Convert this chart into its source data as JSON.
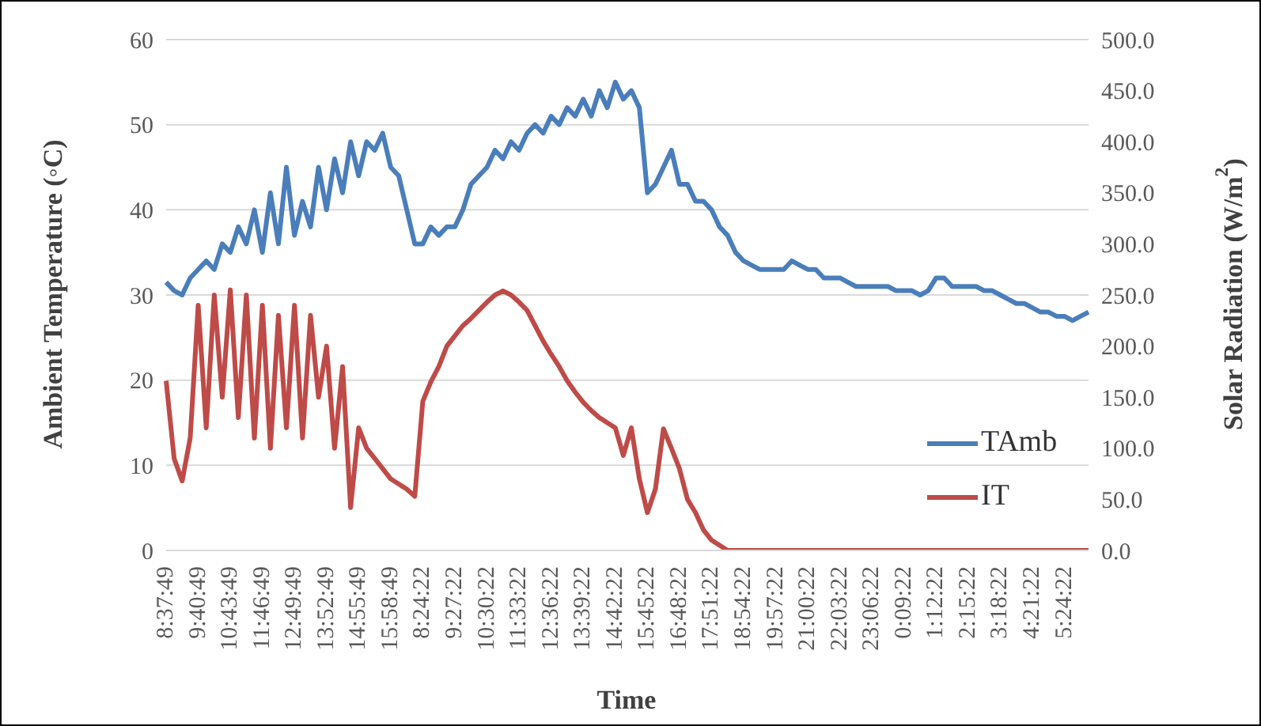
{
  "chart_data": {
    "type": "line",
    "xlabel": "Time",
    "ylabel": "Ambient Temperature (◦C)",
    "y2label": "Solar Radiation (W/m$^{2}$)",
    "categories": [
      "8:37:49",
      null,
      null,
      null,
      "9:40:49",
      null,
      null,
      null,
      "10:43:49",
      null,
      null,
      null,
      "11:46:49",
      null,
      null,
      null,
      "12:49:49",
      null,
      null,
      null,
      "13:52:49",
      null,
      null,
      null,
      "14:55:49",
      null,
      null,
      null,
      "15:58:49",
      null,
      null,
      null,
      "8:24:22",
      null,
      null,
      null,
      "9:27:22",
      null,
      null,
      null,
      "10:30:22",
      null,
      null,
      null,
      "11:33:22",
      null,
      null,
      null,
      "12:36:22",
      null,
      null,
      null,
      "13:39:22",
      null,
      null,
      null,
      "14:42:22",
      null,
      null,
      null,
      "15:45:22",
      null,
      null,
      null,
      "16:48:22",
      null,
      null,
      null,
      "17:51:22",
      null,
      null,
      null,
      "18:54:22",
      null,
      null,
      null,
      "19:57:22",
      null,
      null,
      null,
      "21:00:22",
      null,
      null,
      null,
      "22:03:22",
      null,
      null,
      null,
      "23:06:22",
      null,
      null,
      null,
      "0:09:22",
      null,
      null,
      null,
      "1:12:22",
      null,
      null,
      null,
      "2:15:22",
      null,
      null,
      null,
      "3:18:22",
      null,
      null,
      null,
      "4:21:22",
      null,
      null,
      null,
      "5:24:22",
      null,
      null,
      null
    ],
    "series": [
      {
        "name": "TAmb",
        "color": "#4a7ebb",
        "values": [
          31.5,
          30.5,
          30,
          32,
          33,
          34,
          33,
          36,
          35,
          38,
          36,
          40,
          35,
          42,
          36,
          45,
          37,
          41,
          38,
          45,
          40,
          46,
          42,
          48,
          44,
          48,
          47,
          49,
          45,
          44,
          40,
          36,
          36,
          38,
          37,
          38,
          38,
          40,
          43,
          44,
          45,
          47,
          46,
          48,
          47,
          49,
          50,
          49,
          51,
          50,
          52,
          51,
          53,
          51,
          54,
          52,
          55,
          53,
          54,
          52,
          42,
          43,
          45,
          47,
          43,
          43,
          41,
          41,
          40,
          38,
          37,
          35,
          34,
          33.5,
          33,
          33,
          33,
          33,
          34,
          33.5,
          33,
          33,
          32,
          32,
          32,
          31.5,
          31,
          31,
          31,
          31,
          31,
          30.5,
          30.5,
          30.5,
          30,
          30.5,
          32,
          32,
          31,
          31,
          31,
          31,
          30.5,
          30.5,
          30,
          29.5,
          29,
          29,
          28.5,
          28,
          28,
          27.5,
          27.5,
          27,
          27.5,
          28
        ]
      },
      {
        "name": "IT",
        "color": "#be4b48",
        "axis": "y2",
        "values": [
          166,
          90,
          68,
          110,
          240,
          120,
          250,
          150,
          255,
          130,
          250,
          110,
          240,
          100,
          230,
          120,
          240,
          110,
          230,
          150,
          200,
          100,
          180,
          42,
          120,
          100,
          90,
          80,
          70,
          65,
          60,
          53,
          146,
          165,
          180,
          200,
          210,
          220,
          227,
          235,
          243,
          250,
          254,
          250,
          243,
          235,
          220,
          205,
          192,
          180,
          166,
          155,
          145,
          137,
          130,
          125,
          120,
          93,
          120,
          70,
          37,
          60,
          119,
          100,
          80,
          50,
          37,
          20,
          10,
          5,
          0,
          0,
          0,
          0,
          0,
          0,
          0,
          0,
          0,
          0,
          0,
          0,
          0,
          0,
          0,
          0,
          0,
          0,
          0,
          0,
          0,
          0,
          0,
          0,
          0,
          0,
          0,
          0,
          0,
          0,
          0,
          0,
          0,
          0,
          0,
          0,
          0,
          0,
          0,
          0,
          0,
          0,
          0,
          0,
          0,
          0
        ]
      }
    ],
    "ylim": [
      0,
      60
    ],
    "yticks": [
      0,
      10,
      20,
      30,
      40,
      50,
      60
    ],
    "y2lim": [
      0,
      500
    ],
    "y2ticks": [
      {
        "value": 0,
        "label": "0.0"
      },
      {
        "value": 50,
        "label": "50.0"
      },
      {
        "value": 100,
        "label": "100.0"
      },
      {
        "value": 150,
        "label": "150.0"
      },
      {
        "value": 200,
        "label": "200.0"
      },
      {
        "value": 250,
        "label": "250.0"
      },
      {
        "value": 300,
        "label": "300.0"
      },
      {
        "value": 350,
        "label": "350.0"
      },
      {
        "value": 400,
        "label": "400.0"
      },
      {
        "value": 450,
        "label": "450.0"
      },
      {
        "value": 500,
        "label": "500.0"
      }
    ],
    "grid": "y",
    "legend": "bottom right",
    "marker": "none",
    "line_style": "solid"
  }
}
